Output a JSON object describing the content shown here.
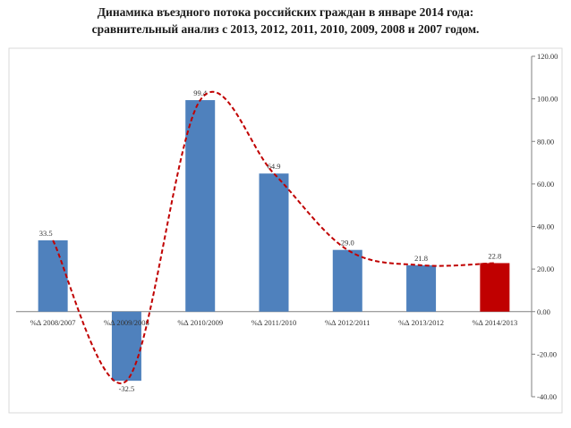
{
  "chart_data": {
    "type": "bar",
    "title_line1": "Динамика въездного потока  российских граждан в январе 2014 года:",
    "title_line2": "сравнительный анализ с 2013, 2012, 2011, 2010, 2009, 2008 и 2007 годом.",
    "categories": [
      "%∆  2008/2007",
      "%∆  2009/2008",
      "%∆  2010/2009",
      "%∆  2011/2010",
      "%∆  2012/2011",
      "%∆  2013/2012",
      "%∆  2014/2013"
    ],
    "values": [
      33.5,
      -32.5,
      99.4,
      64.9,
      29.0,
      21.8,
      22.8
    ],
    "value_labels": [
      "33.5",
      "-32.5",
      "99.4",
      "64.9",
      "29.0",
      "21.8",
      "22.8"
    ],
    "y_ticks": [
      "120.00",
      "100.00",
      "80.00",
      "60.00",
      "40.00",
      "20.00",
      "0.00",
      "-20.00",
      "-40.00"
    ],
    "ylim": [
      -40,
      120
    ],
    "y_axis_side": "right",
    "grid": false,
    "trendline": "smooth dashed curve through bar tops",
    "colors": {
      "bar": "#4f81bd",
      "highlight_bar": "#c00000",
      "trend": "#c00000",
      "frame": "#d9d9d9"
    },
    "highlight_index": 6
  }
}
